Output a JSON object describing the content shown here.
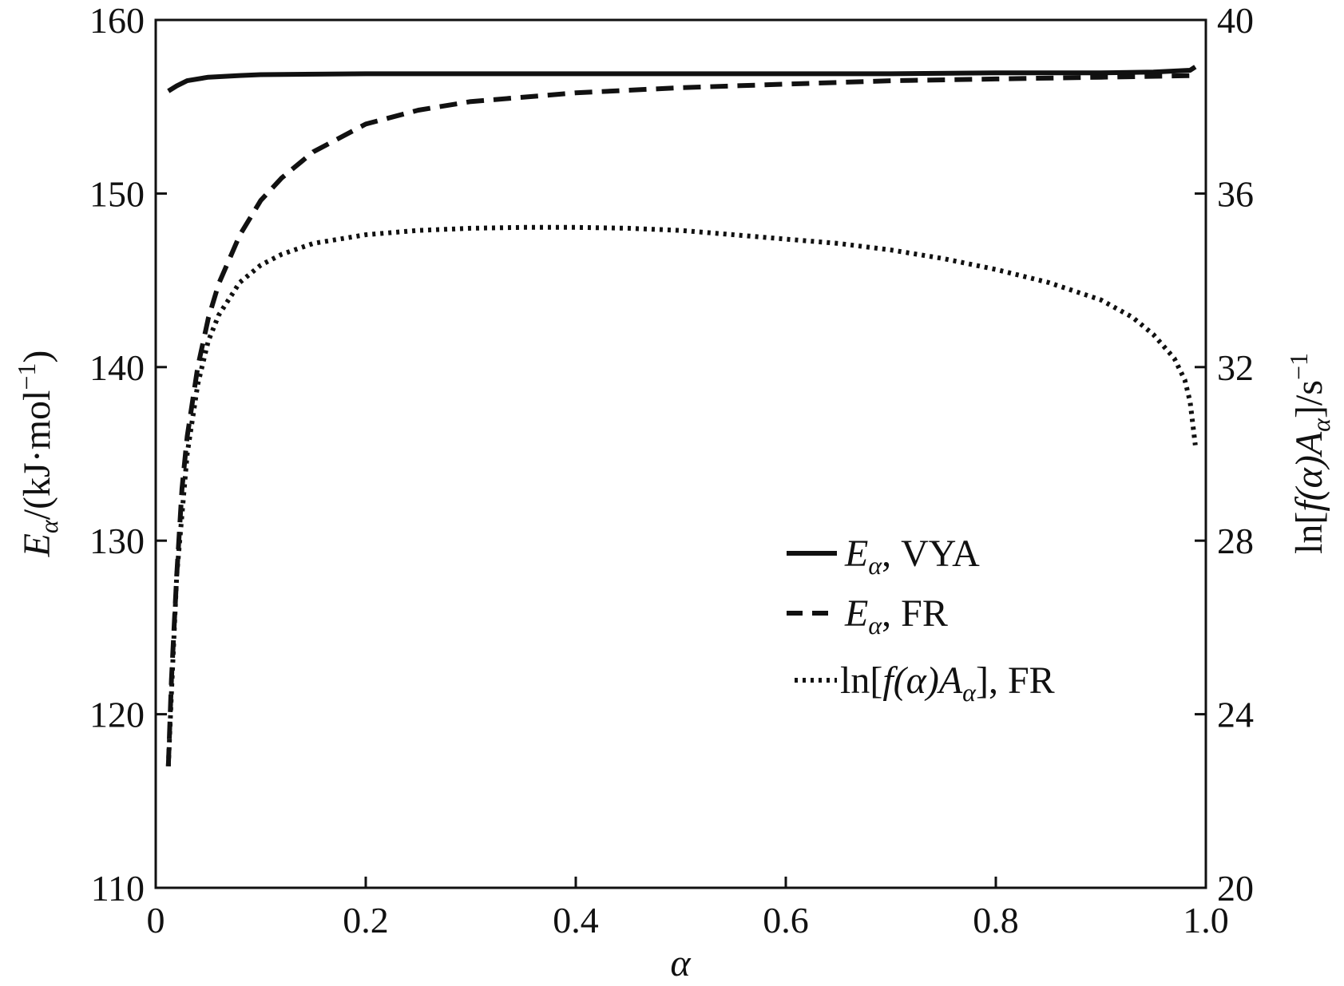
{
  "chart_data": {
    "type": "line",
    "xlabel": "α",
    "ylabel_left": {
      "var": "E",
      "sub": "α",
      "unit": "/(kJ·mol",
      "sup": "−1",
      "close": ")"
    },
    "ylabel_right": {
      "pre": "ln[",
      "f": "f",
      "mid": "(α)A",
      "sub": "α",
      "post": "]/s",
      "sup": "−1"
    },
    "xlim": [
      0,
      1.0
    ],
    "ylim_left": [
      110,
      160
    ],
    "ylim_right": [
      20,
      40
    ],
    "x_ticks": [
      "0",
      "0.2",
      "0.4",
      "0.6",
      "0.8",
      "1.0"
    ],
    "y_left_ticks": [
      "110",
      "120",
      "130",
      "140",
      "150",
      "160"
    ],
    "y_right_ticks": [
      "20",
      "24",
      "28",
      "32",
      "36",
      "40"
    ],
    "grid": false,
    "legend_position": "center-right",
    "series": [
      {
        "name": "Eα, VYA",
        "label": {
          "var": "E",
          "sub": "α",
          "rest": ", VYA"
        },
        "axis": "left",
        "style": "solid",
        "x": [
          0.012,
          0.02,
          0.03,
          0.05,
          0.08,
          0.1,
          0.2,
          0.3,
          0.4,
          0.5,
          0.6,
          0.7,
          0.8,
          0.9,
          0.95,
          0.985,
          0.99
        ],
        "y": [
          155.9,
          156.2,
          156.5,
          156.7,
          156.8,
          156.85,
          156.9,
          156.9,
          156.9,
          156.9,
          156.9,
          156.9,
          156.95,
          156.95,
          157.0,
          157.1,
          157.3
        ]
      },
      {
        "name": "Eα, FR",
        "label": {
          "var": "E",
          "sub": "α",
          "rest": ", FR"
        },
        "axis": "left",
        "style": "dashed",
        "x": [
          0.012,
          0.015,
          0.02,
          0.025,
          0.03,
          0.04,
          0.05,
          0.06,
          0.08,
          0.1,
          0.12,
          0.15,
          0.2,
          0.25,
          0.3,
          0.4,
          0.5,
          0.6,
          0.7,
          0.8,
          0.9,
          0.99
        ],
        "y": [
          117.0,
          122.0,
          128.0,
          133.0,
          136.0,
          140.0,
          142.8,
          144.8,
          147.6,
          149.6,
          150.9,
          152.4,
          154.0,
          154.8,
          155.3,
          155.8,
          156.1,
          156.3,
          156.5,
          156.6,
          156.7,
          156.8
        ]
      },
      {
        "name": "ln[f(α)Aα], FR",
        "label": {
          "pre": "ln[",
          "f": "f",
          "mid": "(α)A",
          "sub": "α",
          "rest": "], FR"
        },
        "axis": "right",
        "style": "dotted",
        "x": [
          0.012,
          0.015,
          0.02,
          0.03,
          0.04,
          0.05,
          0.06,
          0.08,
          0.1,
          0.12,
          0.15,
          0.2,
          0.25,
          0.3,
          0.35,
          0.4,
          0.45,
          0.5,
          0.55,
          0.6,
          0.65,
          0.7,
          0.75,
          0.8,
          0.85,
          0.9,
          0.93,
          0.95,
          0.97,
          0.98,
          0.985,
          0.99
        ],
        "y": [
          22.8,
          24.5,
          27.2,
          30.0,
          31.6,
          32.6,
          33.2,
          33.95,
          34.35,
          34.6,
          34.85,
          35.05,
          35.15,
          35.2,
          35.22,
          35.22,
          35.2,
          35.15,
          35.05,
          34.95,
          34.85,
          34.7,
          34.5,
          34.25,
          33.95,
          33.55,
          33.15,
          32.75,
          32.2,
          31.7,
          31.2,
          30.2
        ]
      }
    ]
  }
}
